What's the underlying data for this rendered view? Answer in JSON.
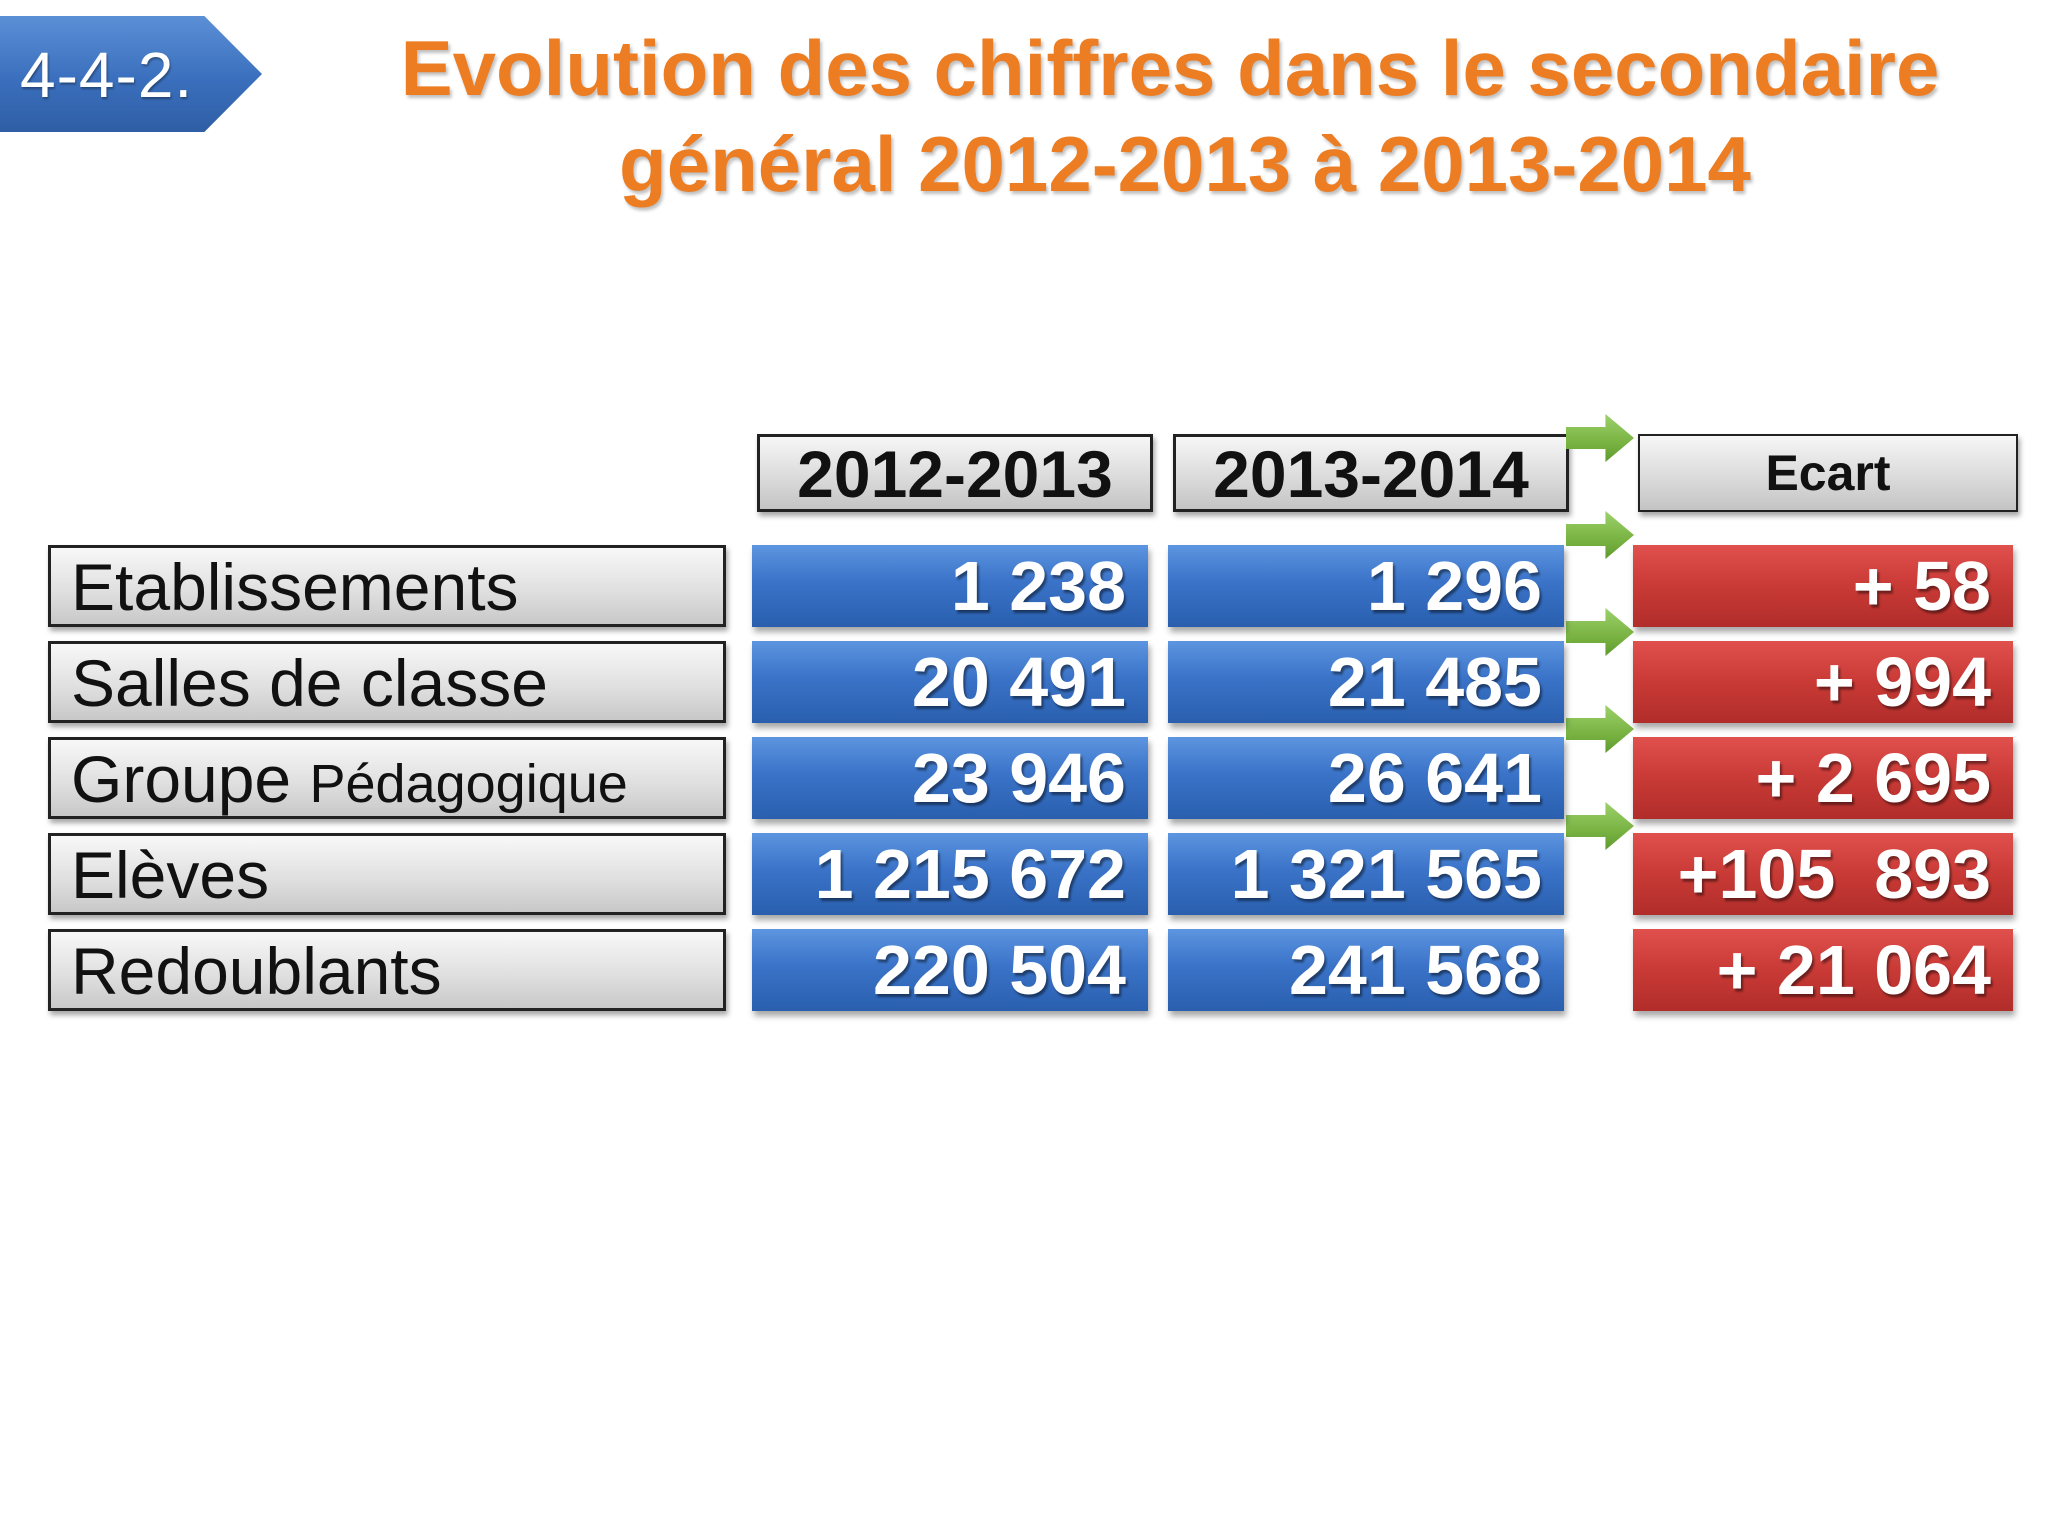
{
  "section_number": "4-4-2.",
  "title": {
    "line1": "Evolution des chiffres dans le secondaire",
    "line2": "général  2012-2013 à 2013-2014"
  },
  "columns": {
    "year1": "2012-2013",
    "year2": "2013-2014",
    "ecart": "Ecart"
  },
  "rows": [
    {
      "label": "Etablissements",
      "label_small": "",
      "y1": "1 238",
      "y2": "1 296",
      "ecart": "+ 58"
    },
    {
      "label": "Salles de classe",
      "label_small": "",
      "y1": "20 491",
      "y2": "21 485",
      "ecart": "+ 994"
    },
    {
      "label": "Groupe ",
      "label_small": "Pédagogique",
      "y1": "23 946",
      "y2": "26 641",
      "ecart": "+ 2 695"
    },
    {
      "label": "Elèves",
      "label_small": "",
      "y1": "1 215 672",
      "y2": "1 321 565",
      "ecart": "+105  893"
    },
    {
      "label": "Redoublants",
      "label_small": "",
      "y1": "220 504",
      "y2": "241 568",
      "ecart": "+ 21 064"
    }
  ],
  "colors": {
    "title": "#ec7d22",
    "badge": "#3a6fbd",
    "value_cells": "#3a73c8",
    "ecart_cells": "#c93a36",
    "arrows": "#79b342"
  }
}
